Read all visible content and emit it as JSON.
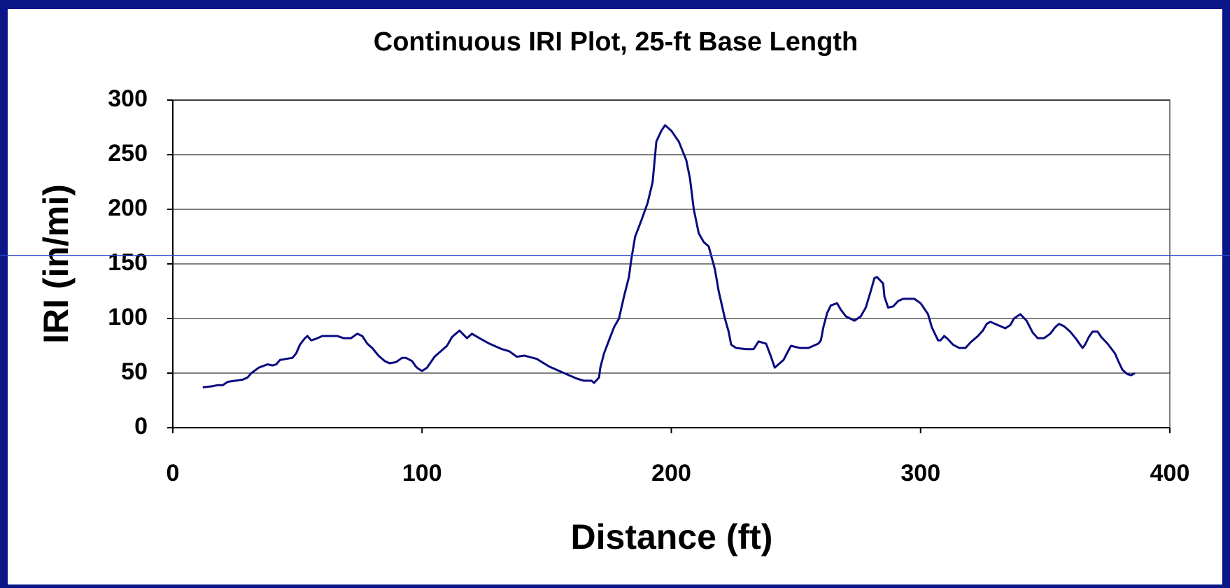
{
  "chart_data": {
    "type": "line",
    "title": "Continuous IRI Plot, 25-ft Base Length",
    "xlabel": "Distance (ft)",
    "ylabel": "IRI (in/mi)",
    "color": "#0a0a80",
    "xlim": [
      0,
      400
    ],
    "xticks": [
      0,
      100,
      200,
      300,
      400
    ],
    "ylim": [
      0,
      300
    ],
    "yticks": [
      0,
      50,
      100,
      150,
      200,
      250,
      300
    ],
    "grid": true,
    "x": [
      12,
      16,
      18,
      20,
      22,
      25,
      28,
      30,
      31.5,
      34.5,
      38,
      40,
      41.5,
      43,
      45.5,
      48,
      49.5,
      51,
      53,
      54,
      55.5,
      57,
      60,
      66,
      68.5,
      71.5,
      74,
      76,
      78,
      80,
      82.5,
      85,
      87,
      89.5,
      92,
      93.5,
      96,
      97.5,
      98.5,
      100,
      102,
      105,
      110,
      112,
      115,
      118,
      120,
      123,
      127,
      132,
      135,
      138,
      141,
      146,
      151,
      157,
      162,
      165,
      168,
      169,
      171,
      171.5,
      173,
      175,
      177,
      179,
      181,
      183,
      184,
      185.5,
      188,
      190.5,
      192.5,
      194,
      196,
      197.5,
      200,
      203,
      206,
      207.5,
      209,
      211,
      213,
      215,
      217.5,
      219,
      221.5,
      223,
      224,
      226,
      230,
      233,
      235,
      238,
      240,
      241.5,
      245,
      248,
      251.5,
      255,
      259,
      260,
      261,
      262.5,
      264,
      266.5,
      268,
      270,
      273.5,
      276,
      278,
      280,
      281.5,
      282.5,
      285,
      285.5,
      287,
      289,
      291,
      293,
      297.5,
      300,
      303,
      304.5,
      307,
      308,
      309.5,
      311,
      313,
      315.5,
      318,
      320,
      323,
      325,
      326.5,
      328,
      331,
      334,
      336,
      337.5,
      340,
      342.5,
      345,
      347,
      349.5,
      352,
      354,
      355.5,
      357.5,
      360,
      362.5,
      364,
      365,
      366,
      367.5,
      369,
      371,
      372.5,
      375,
      378,
      379.5,
      381,
      383,
      384.5,
      386
    ],
    "values": [
      37,
      38,
      39,
      39,
      42,
      43,
      44,
      46,
      50,
      55,
      58,
      57,
      58,
      62,
      63,
      64,
      68,
      76,
      82,
      84,
      80,
      81,
      84,
      84,
      82,
      82,
      86,
      84,
      77,
      73,
      66,
      61,
      59,
      60,
      64,
      64,
      61,
      56,
      54,
      52,
      55,
      65,
      75,
      83,
      89,
      82,
      86,
      82,
      77,
      72,
      70,
      65,
      66,
      63,
      56,
      50,
      45,
      43,
      43,
      41,
      46,
      55,
      68,
      80,
      92,
      100,
      120,
      138,
      155,
      175,
      190,
      206,
      225,
      262,
      272,
      277,
      272,
      262,
      245,
      228,
      200,
      178,
      170,
      166,
      145,
      125,
      100,
      88,
      76,
      73,
      72,
      72,
      79,
      77,
      65,
      55,
      62,
      75,
      73,
      73,
      77,
      80,
      92,
      105,
      112,
      114,
      108,
      102,
      98,
      102,
      110,
      125,
      137,
      138,
      132,
      120,
      110,
      111,
      116,
      118,
      118,
      114,
      104,
      92,
      80,
      80,
      84,
      81,
      76,
      73,
      73,
      78,
      84,
      89,
      95,
      97,
      94,
      91,
      94,
      100,
      104,
      98,
      87,
      82,
      82,
      86,
      92,
      95,
      93,
      88,
      81,
      76,
      73,
      76,
      83,
      88,
      88,
      83,
      77,
      68,
      60,
      53,
      49,
      48,
      50
    ]
  }
}
